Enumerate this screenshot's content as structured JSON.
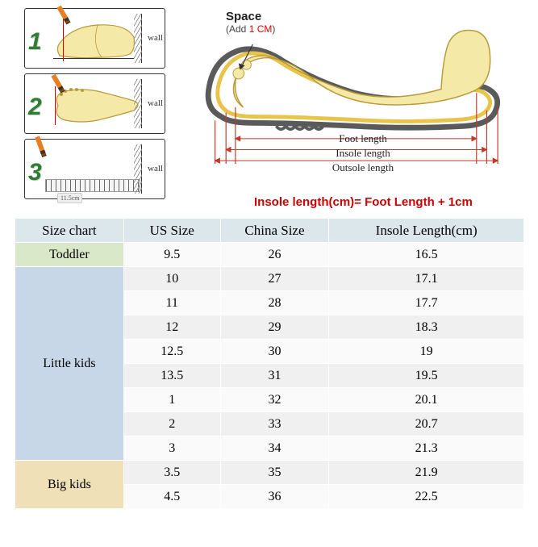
{
  "steps": {
    "num1": "1",
    "num2": "2",
    "num3": "3",
    "wall": "wall",
    "measure_value": "11.5cm"
  },
  "diagram": {
    "space_title": "Space",
    "space_sub_pre": "(Add ",
    "space_sub_red": "1 CM",
    "space_sub_post": ")",
    "foot_length": "Foot length",
    "insole_length": "Insole length",
    "outsole_length": "Outsole length",
    "formula": "Insole length(cm)= Foot Length + 1cm",
    "colors": {
      "outsole": "#5a5a5a",
      "insole": "#e8c44a",
      "foot_fill": "#f5e9a8",
      "foot_stroke": "#b89a3a",
      "dim_line": "#c0392b",
      "tick": "#c0392b"
    }
  },
  "table": {
    "headers": [
      "Size chart",
      "US Size",
      "China Size",
      "Insole Length(cm)"
    ],
    "groups": [
      {
        "label": "Toddler",
        "class": "cat-toddler",
        "rows": [
          [
            "9.5",
            "26",
            "16.5"
          ]
        ]
      },
      {
        "label": "Little kids",
        "class": "cat-little",
        "rows": [
          [
            "10",
            "27",
            "17.1"
          ],
          [
            "11",
            "28",
            "17.7"
          ],
          [
            "12",
            "29",
            "18.3"
          ],
          [
            "12.5",
            "30",
            "19"
          ],
          [
            "13.5",
            "31",
            "19.5"
          ],
          [
            "1",
            "32",
            "20.1"
          ],
          [
            "2",
            "33",
            "20.7"
          ],
          [
            "3",
            "34",
            "21.3"
          ]
        ]
      },
      {
        "label": "Big kids",
        "class": "cat-big",
        "rows": [
          [
            "3.5",
            "35",
            "21.9"
          ],
          [
            "4.5",
            "36",
            "22.5"
          ]
        ]
      }
    ]
  }
}
